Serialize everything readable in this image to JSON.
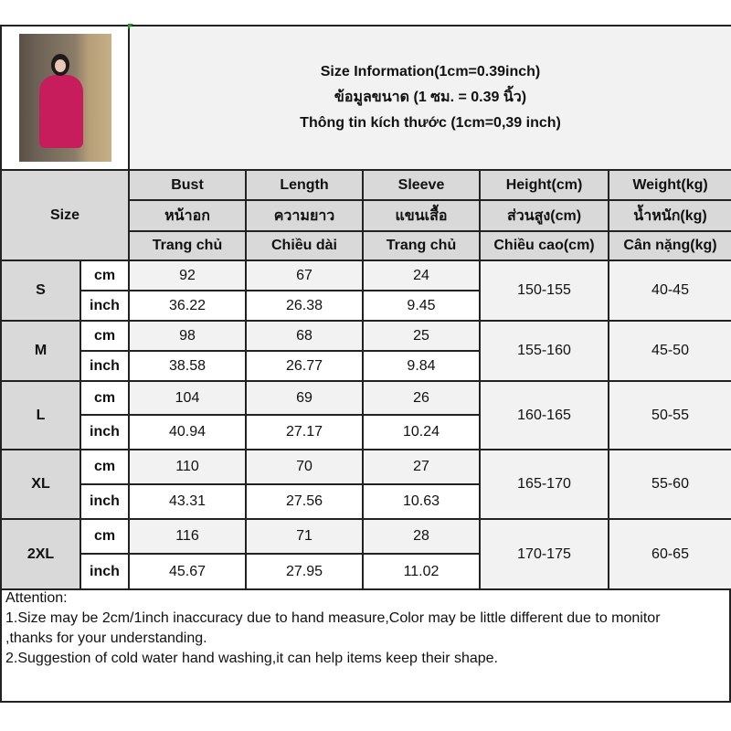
{
  "title_lines": [
    "Size Information(1cm=0.39inch)",
    "ข้อมูลขนาด (1 ซม. = 0.39 นิ้ว)",
    "Thông tin kích thước (1cm=0,39 inch)"
  ],
  "size_label": "Size",
  "headers": [
    [
      "Bust",
      "Length",
      "Sleeve",
      "Height(cm)",
      "Weight(kg)"
    ],
    [
      "หน้าอก",
      "ความยาว",
      "แขนเสื้อ",
      "ส่วนสูง(cm)",
      "น้ำหนัก(kg)"
    ],
    [
      "Trang chủ",
      "Chiều dài",
      "Trang chủ",
      "Chiều cao(cm)",
      "Cân nặng(kg)"
    ]
  ],
  "unit_cm": "cm",
  "unit_inch": "inch",
  "sizes": [
    {
      "size": "S",
      "cm": [
        "92",
        "67",
        "24"
      ],
      "inch": [
        "36.22",
        "26.38",
        "9.45"
      ],
      "height": "150-155",
      "weight": "40-45"
    },
    {
      "size": "M",
      "cm": [
        "98",
        "68",
        "25"
      ],
      "inch": [
        "38.58",
        "26.77",
        "9.84"
      ],
      "height": "155-160",
      "weight": "45-50"
    },
    {
      "size": "L",
      "cm": [
        "104",
        "69",
        "26"
      ],
      "inch": [
        "40.94",
        "27.17",
        "10.24"
      ],
      "height": "160-165",
      "weight": "50-55"
    },
    {
      "size": "XL",
      "cm": [
        "110",
        "70",
        "27"
      ],
      "inch": [
        "43.31",
        "27.56",
        "10.63"
      ],
      "height": "165-170",
      "weight": "55-60"
    },
    {
      "size": "2XL",
      "cm": [
        "116",
        "71",
        "28"
      ],
      "inch": [
        "45.67",
        "27.95",
        "11.02"
      ],
      "height": "170-175",
      "weight": "60-65"
    }
  ],
  "attention": {
    "heading": "Attention:",
    "lines": [
      "1.Size may be 2cm/1inch inaccuracy due to hand measure,Color may be little different due to monitor",
      ",thanks for your understanding.",
      "2.Suggestion of cold water hand washing,it can help items keep their shape."
    ]
  },
  "colors": {
    "header_gray": "#d9d9d9",
    "cm_row": "#f2f2f2",
    "inch_row": "#ffffff",
    "dress": "#c81d5d"
  }
}
